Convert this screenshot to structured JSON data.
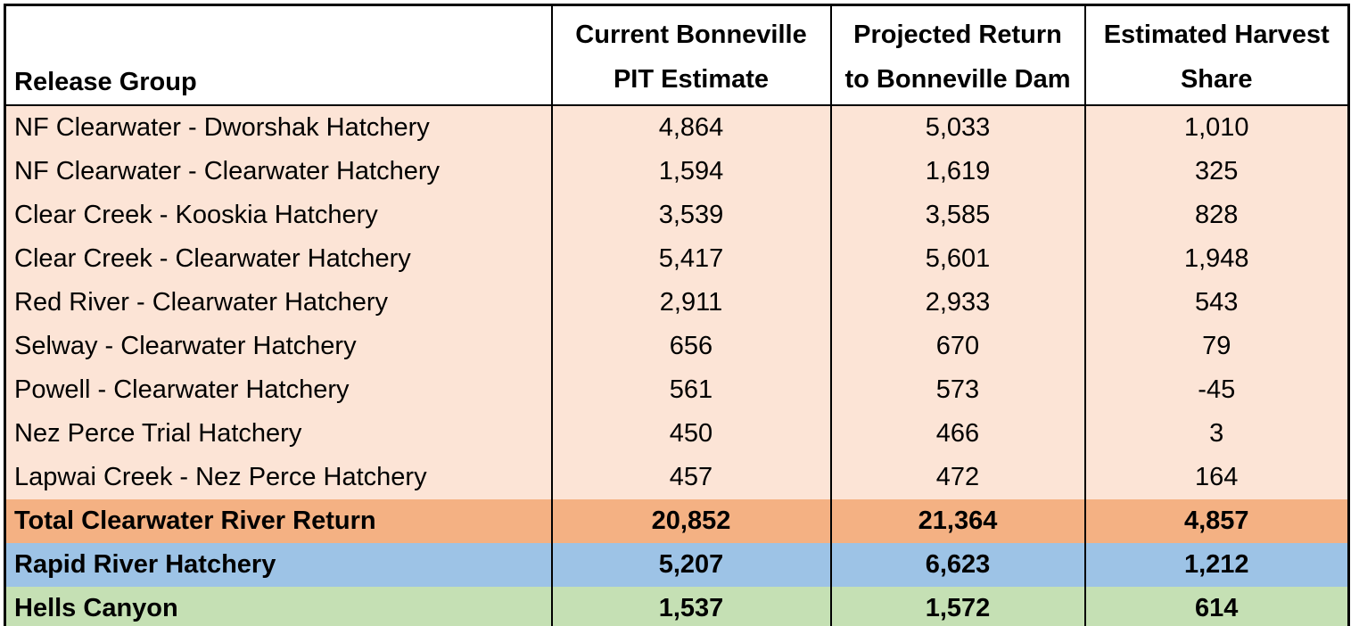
{
  "header": {
    "col1": "Release Group",
    "col2_line1": "Current Bonneville",
    "col2_line2": "PIT Estimate",
    "col3_line1": "Projected Return",
    "col3_line2": "to Bonneville Dam",
    "col4_line1": "Estimated Harvest",
    "col4_line2": "Share"
  },
  "colors": {
    "data_row_bg": "#FCE4D6",
    "total_row_bg": "#F4B183",
    "rapid_river_row_bg": "#9DC3E6",
    "hells_canyon_row_bg": "#C5E0B4",
    "header_bg": "#FFFFFF",
    "border": "#000000",
    "text": "#000000"
  },
  "chart_data": {
    "type": "table",
    "columns": [
      "Release Group",
      "Current Bonneville PIT Estimate",
      "Projected Return to Bonneville Dam",
      "Estimated Harvest Share"
    ],
    "rows": [
      {
        "style": "plain",
        "release_group": "NF Clearwater - Dworshak Hatchery",
        "current_bonneville_pit_estimate": "4,864",
        "projected_return_to_bonneville_dam": "5,033",
        "estimated_harvest_share": "1,010"
      },
      {
        "style": "plain",
        "release_group": "NF Clearwater - Clearwater Hatchery",
        "current_bonneville_pit_estimate": "1,594",
        "projected_return_to_bonneville_dam": "1,619",
        "estimated_harvest_share": "325"
      },
      {
        "style": "plain",
        "release_group": "Clear Creek - Kooskia Hatchery",
        "current_bonneville_pit_estimate": "3,539",
        "projected_return_to_bonneville_dam": "3,585",
        "estimated_harvest_share": "828"
      },
      {
        "style": "plain",
        "release_group": "Clear Creek - Clearwater Hatchery",
        "current_bonneville_pit_estimate": "5,417",
        "projected_return_to_bonneville_dam": "5,601",
        "estimated_harvest_share": "1,948"
      },
      {
        "style": "plain",
        "release_group": "Red River - Clearwater Hatchery",
        "current_bonneville_pit_estimate": "2,911",
        "projected_return_to_bonneville_dam": "2,933",
        "estimated_harvest_share": "543"
      },
      {
        "style": "plain",
        "release_group": "Selway - Clearwater Hatchery",
        "current_bonneville_pit_estimate": "656",
        "projected_return_to_bonneville_dam": "670",
        "estimated_harvest_share": "79"
      },
      {
        "style": "plain",
        "release_group": "Powell - Clearwater Hatchery",
        "current_bonneville_pit_estimate": "561",
        "projected_return_to_bonneville_dam": "573",
        "estimated_harvest_share": "-45"
      },
      {
        "style": "plain",
        "release_group": "Nez Perce Trial Hatchery",
        "current_bonneville_pit_estimate": "450",
        "projected_return_to_bonneville_dam": "466",
        "estimated_harvest_share": "3"
      },
      {
        "style": "plain",
        "release_group": "Lapwai Creek - Nez Perce Hatchery",
        "current_bonneville_pit_estimate": "457",
        "projected_return_to_bonneville_dam": "472",
        "estimated_harvest_share": "164"
      },
      {
        "style": "total",
        "release_group": "Total Clearwater River Return",
        "current_bonneville_pit_estimate": "20,852",
        "projected_return_to_bonneville_dam": "21,364",
        "estimated_harvest_share": "4,857"
      },
      {
        "style": "rapid",
        "release_group": "Rapid River Hatchery",
        "current_bonneville_pit_estimate": "5,207",
        "projected_return_to_bonneville_dam": "6,623",
        "estimated_harvest_share": "1,212"
      },
      {
        "style": "hells",
        "release_group": "Hells Canyon",
        "current_bonneville_pit_estimate": "1,537",
        "projected_return_to_bonneville_dam": "1,572",
        "estimated_harvest_share": "614"
      }
    ]
  }
}
